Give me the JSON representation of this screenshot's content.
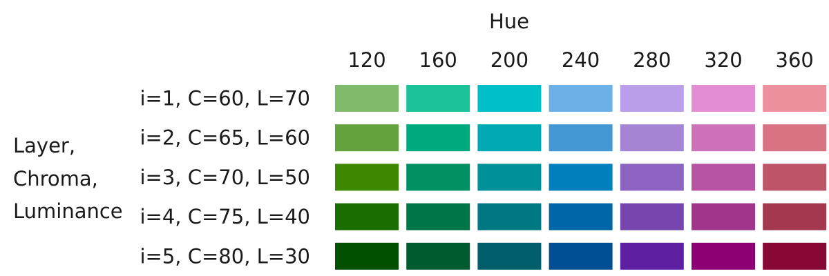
{
  "chart_data": {
    "type": "heatmap",
    "title": "",
    "xlabel": "Hue",
    "ylabel": [
      "Layer,",
      "Chroma,",
      "Luminance"
    ],
    "x": [
      "120",
      "160",
      "200",
      "240",
      "280",
      "320",
      "360"
    ],
    "y": [
      "i=1, C=60, L=70",
      "i=2, C=65, L=60",
      "i=3, C=70, L=50",
      "i=4, C=75, L=40",
      "i=5, C=80, L=30"
    ],
    "colors": [
      [
        "#7fbb6b",
        "#1cc29a",
        "#00bfc9",
        "#6bb0e6",
        "#bb9eea",
        "#e38ed4",
        "#ee919f"
      ],
      [
        "#62a33e",
        "#00aa7f",
        "#00a9b3",
        "#4397d3",
        "#a584d6",
        "#cd71bb",
        "#d87384"
      ],
      [
        "#3d8800",
        "#009063",
        "#00909a",
        "#0080bc",
        "#8c63c1",
        "#b754a3",
        "#bf5569"
      ],
      [
        "#1a6d00",
        "#007648",
        "#007883",
        "#0066a6",
        "#7645ad",
        "#a0358b",
        "#a3384f"
      ],
      [
        "#005000",
        "#005c2e",
        "#005e6b",
        "#004e93",
        "#5e20a1",
        "#8d0075",
        "#880835"
      ]
    ]
  }
}
